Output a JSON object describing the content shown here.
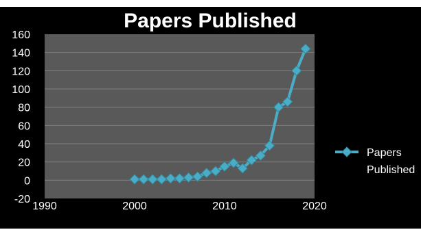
{
  "chart_data": {
    "type": "line",
    "title": "Papers Published",
    "xlabel": "",
    "ylabel": "",
    "xlim": [
      1990,
      2020
    ],
    "ylim": [
      -20,
      160
    ],
    "x_ticks": [
      1990,
      2000,
      2010,
      2020
    ],
    "y_ticks": [
      -20,
      0,
      20,
      40,
      60,
      80,
      100,
      120,
      140,
      160
    ],
    "grid": true,
    "legend": "right",
    "series": [
      {
        "name": "Papers Published",
        "color": "#4bacc6",
        "marker": "diamond",
        "x": [
          2000,
          2001,
          2002,
          2003,
          2004,
          2005,
          2006,
          2007,
          2008,
          2009,
          2010,
          2011,
          2012,
          2013,
          2014,
          2015,
          2016,
          2017,
          2018,
          2019
        ],
        "y": [
          1,
          1,
          1,
          1,
          2,
          2,
          3,
          4,
          8,
          10,
          15,
          19,
          13,
          22,
          27,
          38,
          80,
          86,
          120,
          144
        ]
      }
    ]
  },
  "colors": {
    "background": "#000000",
    "plot_area": "#595959",
    "gridline": "#7f7f7f",
    "text": "#ffffff",
    "series": "#4bacc6"
  }
}
